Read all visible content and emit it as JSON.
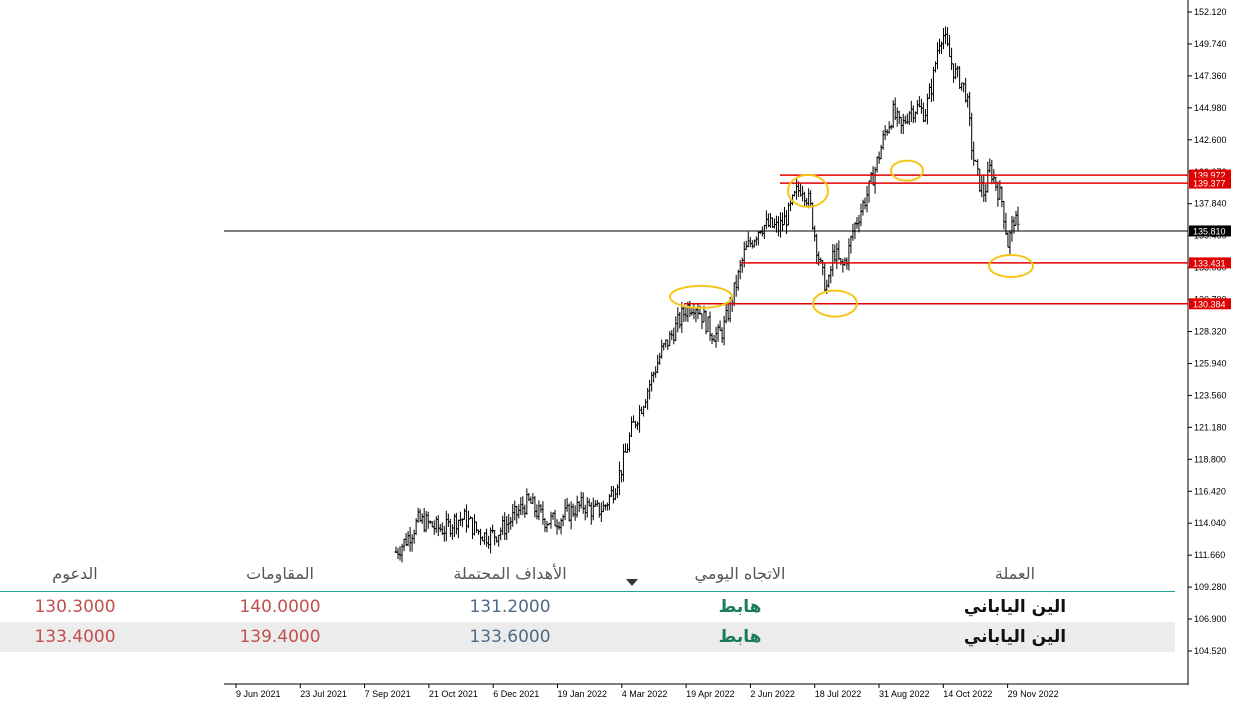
{
  "chart_data": {
    "type": "candlestick",
    "y_ticks": [
      "152.120",
      "149.740",
      "147.360",
      "144.980",
      "142.600",
      "139.972",
      "137.840",
      "135.460",
      "133.080",
      "130.700",
      "128.320",
      "125.940",
      "123.560",
      "121.180",
      "118.800",
      "116.420",
      "114.040",
      "111.660",
      "109.280",
      "106.900",
      "104.520"
    ],
    "ylim": [
      104.52,
      152.12
    ],
    "x_ticks": [
      "9 Jun 2021",
      "23 Jul 2021",
      "7 Sep 2021",
      "21 Oct 2021",
      "6 Dec 2021",
      "19 Jan 2022",
      "4 Mar 2022",
      "19 Apr 2022",
      "2 Jun 2022",
      "18 Jul 2022",
      "31 Aug 2022",
      "14 Oct 2022",
      "29 Nov 2022"
    ],
    "current_price": {
      "value": 135.81,
      "label": "135.810"
    },
    "levels": [
      {
        "value": 139.972,
        "label": "139.972",
        "color": "#e00000"
      },
      {
        "value": 139.377,
        "label": "139.377",
        "color": "#e00000"
      },
      {
        "value": 133.431,
        "label": "133.431",
        "color": "#e00000"
      },
      {
        "value": 130.384,
        "label": "130.384",
        "color": "#e00000"
      }
    ],
    "price_path": [
      [
        0,
        111.9
      ],
      [
        8,
        112.6
      ],
      [
        16,
        113.4
      ],
      [
        22,
        114.2
      ],
      [
        30,
        114.1
      ],
      [
        40,
        113.7
      ],
      [
        50,
        113.6
      ],
      [
        60,
        114.3
      ],
      [
        70,
        114.4
      ],
      [
        80,
        113.6
      ],
      [
        90,
        113.1
      ],
      [
        100,
        113.2
      ],
      [
        110,
        113.8
      ],
      [
        120,
        114.6
      ],
      [
        130,
        115.4
      ],
      [
        135,
        115.6
      ],
      [
        140,
        115.1
      ],
      [
        150,
        114.3
      ],
      [
        160,
        114.2
      ],
      [
        170,
        114.6
      ],
      [
        180,
        115.1
      ],
      [
        190,
        115.4
      ],
      [
        195,
        115.2
      ],
      [
        200,
        114.9
      ],
      [
        210,
        115.2
      ],
      [
        220,
        116.6
      ],
      [
        228,
        118.2
      ],
      [
        238,
        121.0
      ],
      [
        248,
        122.8
      ],
      [
        258,
        124.8
      ],
      [
        268,
        126.8
      ],
      [
        278,
        128.0
      ],
      [
        288,
        129.4
      ],
      [
        295,
        130.2
      ],
      [
        302,
        130.4
      ],
      [
        310,
        129.4
      ],
      [
        318,
        128.3
      ],
      [
        325,
        128.0
      ],
      [
        330,
        128.4
      ],
      [
        338,
        130.4
      ],
      [
        344,
        132.0
      ],
      [
        352,
        134.2
      ],
      [
        360,
        135.2
      ],
      [
        368,
        136.2
      ],
      [
        378,
        136.2
      ],
      [
        386,
        136.0
      ],
      [
        396,
        137.0
      ],
      [
        404,
        138.6
      ],
      [
        410,
        139.2
      ],
      [
        418,
        137.8
      ],
      [
        424,
        135.0
      ],
      [
        430,
        132.6
      ],
      [
        436,
        131.4
      ],
      [
        442,
        134.4
      ],
      [
        450,
        133.0
      ],
      [
        456,
        134.0
      ],
      [
        462,
        136.0
      ],
      [
        470,
        137.5
      ],
      [
        478,
        139.0
      ],
      [
        486,
        141.0
      ],
      [
        494,
        143.2
      ],
      [
        502,
        144.6
      ],
      [
        510,
        143.4
      ],
      [
        518,
        144.8
      ],
      [
        526,
        145.0
      ],
      [
        534,
        144.6
      ],
      [
        542,
        147.0
      ],
      [
        548,
        150.0
      ],
      [
        552,
        150.6
      ],
      [
        558,
        149.0
      ],
      [
        564,
        147.6
      ],
      [
        570,
        147.0
      ],
      [
        576,
        146.0
      ],
      [
        582,
        141.6
      ],
      [
        588,
        139.6
      ],
      [
        594,
        138.6
      ],
      [
        600,
        140.5
      ],
      [
        606,
        139.2
      ],
      [
        612,
        138.0
      ],
      [
        618,
        134.8
      ],
      [
        624,
        136.8
      ],
      [
        628,
        135.81
      ]
    ],
    "annotations": [
      "ellipse-1",
      "ellipse-2",
      "ellipse-3",
      "ellipse-4",
      "ellipse-5",
      "ellipse-6"
    ]
  },
  "table": {
    "headers": {
      "supports": "الدعوم",
      "resistances": "المقاومات",
      "targets": "الأهداف المحتملة",
      "daily_trend": "الاتجاه اليومي",
      "currency": "العملة"
    },
    "rows": [
      {
        "supports": "130.3000",
        "resistances": "140.0000",
        "targets": "131.2000",
        "daily_trend": "هابط",
        "currency": "الين الياباني"
      },
      {
        "supports": "133.4000",
        "resistances": "139.4000",
        "targets": "133.6000",
        "daily_trend": "هابط",
        "currency": "الين الياباني"
      }
    ]
  },
  "colors": {
    "level": "#e00000",
    "annotation": "#f5c518",
    "divider": "#1aa39a",
    "up_candle": "#000000"
  },
  "icons": {
    "sort": "triangle-down-icon"
  }
}
